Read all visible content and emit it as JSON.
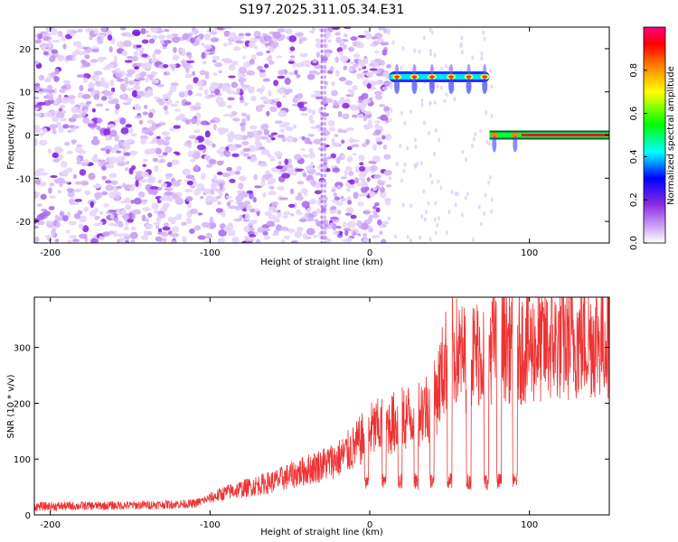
{
  "title": "S197.2025.311.05.34.E31",
  "chart_data": [
    {
      "type": "heatmap",
      "title": "S197.2025.311.05.34.E31",
      "xlabel": "Height of straight line (km)",
      "ylabel": "Frequency (Hz)",
      "xlim": [
        -210,
        150
      ],
      "ylim": [
        -25,
        25
      ],
      "xticks": [
        -200,
        -100,
        0,
        100
      ],
      "yticks": [
        -20,
        -10,
        0,
        10,
        20
      ],
      "colorbar": {
        "label": "Normalized spectral amplitude",
        "range": [
          0,
          1
        ],
        "ticks": [
          0.0,
          0.2,
          0.4,
          0.6,
          0.8
        ],
        "colors": [
          "#ffffff",
          "#8a2be2",
          "#0000ff",
          "#00ffff",
          "#00ff00",
          "#ffff00",
          "#ff8000",
          "#ff0000",
          "#ff0080"
        ]
      },
      "features": {
        "noise_region_x": [
          -210,
          12
        ],
        "upper_band": {
          "x": [
            12,
            75
          ],
          "freq": 13.5,
          "peaks_x": [
            17,
            28,
            39,
            51,
            62,
            72
          ]
        },
        "lower_band": {
          "x": [
            75,
            150
          ],
          "freq": 0,
          "peaks_x": [
            78,
            91,
            120
          ]
        }
      }
    },
    {
      "type": "line",
      "xlabel": "Height of straight line (km)",
      "ylabel": "SNR (10 * v/v)",
      "xlim": [
        -210,
        150
      ],
      "ylim": [
        0,
        390
      ],
      "xticks": [
        -200,
        -100,
        0,
        100
      ],
      "yticks": [
        0,
        100,
        200,
        300
      ],
      "color": "#ee3333",
      "series": [
        {
          "name": "SNR",
          "x": [
            -210,
            -150,
            -110,
            -90,
            -60,
            -30,
            -20,
            -10,
            0,
            20,
            40,
            50,
            60,
            80,
            100,
            150
          ],
          "values": [
            15,
            17,
            20,
            40,
            60,
            90,
            100,
            120,
            150,
            170,
            200,
            300,
            280,
            310,
            300,
            320
          ]
        }
      ],
      "dips_x": [
        -2,
        9,
        19,
        29,
        39,
        50,
        62,
        73,
        81,
        91
      ]
    }
  ]
}
